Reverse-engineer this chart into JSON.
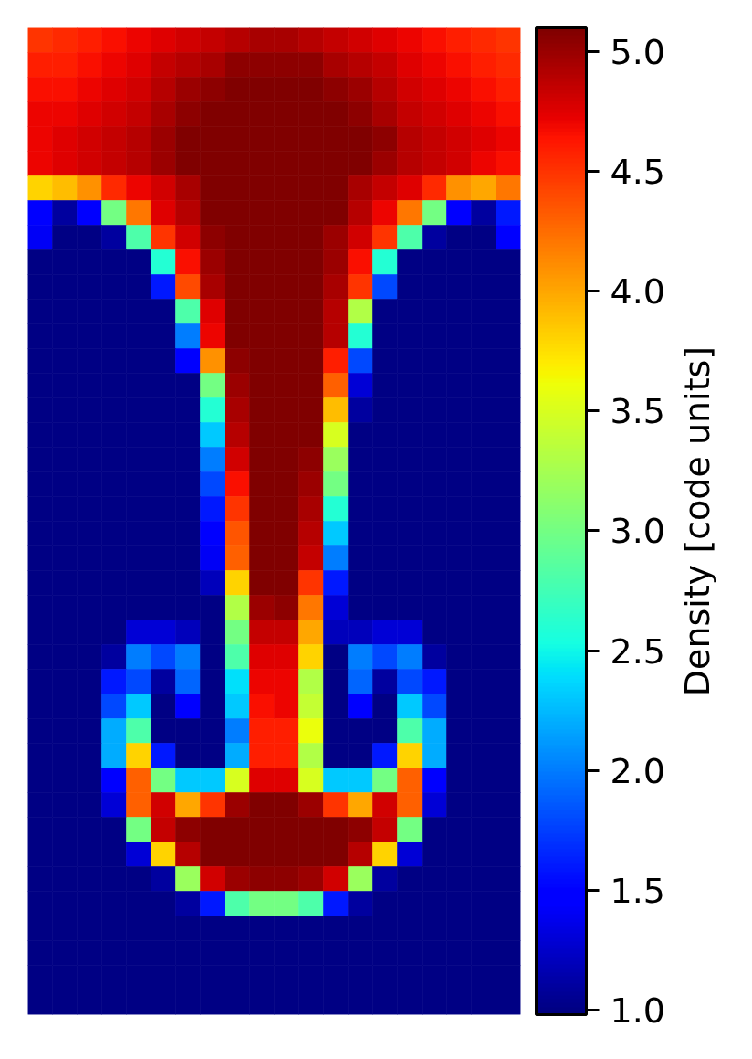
{
  "chart_data": {
    "type": "heatmap",
    "categories": [
      null,
      null,
      null,
      null,
      null,
      null,
      null,
      null,
      null,
      null,
      null,
      null,
      null,
      null,
      null,
      null,
      null,
      null,
      null,
      null
    ],
    "y_categories": [
      null,
      null,
      null,
      null,
      null,
      null,
      null,
      null,
      null,
      null,
      null,
      null,
      null,
      null,
      null,
      null,
      null,
      null,
      null,
      null,
      null,
      null,
      null,
      null,
      null,
      null,
      null,
      null,
      null,
      null,
      null,
      null,
      null,
      null,
      null,
      null,
      null,
      null,
      null,
      null
    ],
    "cells": [
      [
        4.5,
        4.55,
        4.6,
        4.65,
        4.7,
        4.75,
        4.8,
        4.85,
        4.9,
        4.95,
        4.95,
        4.9,
        4.85,
        4.8,
        4.75,
        4.7,
        4.65,
        4.6,
        4.55,
        4.5
      ],
      [
        4.6,
        4.6,
        4.65,
        4.7,
        4.75,
        4.85,
        4.9,
        4.95,
        5.05,
        5.05,
        5.05,
        5.05,
        4.95,
        4.9,
        4.85,
        4.75,
        4.7,
        4.65,
        4.6,
        4.55
      ],
      [
        4.65,
        4.65,
        4.7,
        4.75,
        4.8,
        4.9,
        5.0,
        5.05,
        5.1,
        5.1,
        5.1,
        5.1,
        5.05,
        5.0,
        4.9,
        4.8,
        4.75,
        4.7,
        4.65,
        4.6
      ],
      [
        4.7,
        4.7,
        4.75,
        4.8,
        4.85,
        4.95,
        5.05,
        5.1,
        5.1,
        5.1,
        5.1,
        5.1,
        5.1,
        5.05,
        4.95,
        4.85,
        4.8,
        4.75,
        4.7,
        4.65
      ],
      [
        4.7,
        4.75,
        4.8,
        4.85,
        4.9,
        5.0,
        5.1,
        5.1,
        5.1,
        5.1,
        5.1,
        5.1,
        5.1,
        5.1,
        5.05,
        4.9,
        4.85,
        4.8,
        4.75,
        4.7
      ],
      [
        4.7,
        4.75,
        4.8,
        4.85,
        4.9,
        5.0,
        5.1,
        5.1,
        5.1,
        5.1,
        5.1,
        5.1,
        5.1,
        5.1,
        5.0,
        4.9,
        4.85,
        4.8,
        4.7,
        4.65
      ],
      [
        3.8,
        3.9,
        4.1,
        4.55,
        4.7,
        4.8,
        4.95,
        5.1,
        5.1,
        5.1,
        5.1,
        5.1,
        5.1,
        4.95,
        4.85,
        4.75,
        4.55,
        4.1,
        4.0,
        4.2
      ],
      [
        1.5,
        1.1,
        1.5,
        3.0,
        4.2,
        4.75,
        4.9,
        5.1,
        5.1,
        5.1,
        5.1,
        5.1,
        5.1,
        4.9,
        4.7,
        4.2,
        3.0,
        1.5,
        1.1,
        1.6
      ],
      [
        1.4,
        1,
        1,
        1.1,
        2.8,
        4.5,
        4.8,
        5.05,
        5.1,
        5.1,
        5.1,
        5.1,
        5.0,
        4.8,
        4.5,
        2.8,
        1.1,
        1,
        1,
        1.5
      ],
      [
        1,
        1,
        1,
        1,
        1,
        2.6,
        4.65,
        5.0,
        5.1,
        5.1,
        5.1,
        5.1,
        5.0,
        4.65,
        2.6,
        1,
        1,
        1,
        1,
        1
      ],
      [
        1,
        1,
        1,
        1,
        1,
        1.6,
        4.4,
        4.95,
        5.1,
        5.1,
        5.1,
        5.1,
        4.95,
        4.5,
        1.8,
        1,
        1,
        1,
        1,
        1
      ],
      [
        1,
        1,
        1,
        1,
        1,
        1,
        2.8,
        4.75,
        5.1,
        5.1,
        5.1,
        5.1,
        4.9,
        3.3,
        1,
        1,
        1,
        1,
        1,
        1
      ],
      [
        1,
        1,
        1,
        1,
        1,
        1,
        2.0,
        4.7,
        5.1,
        5.1,
        5.1,
        5.1,
        4.9,
        2.6,
        1,
        1,
        1,
        1,
        1,
        1
      ],
      [
        1,
        1,
        1,
        1,
        1,
        1,
        1.5,
        4.1,
        5.05,
        5.1,
        5.1,
        5.1,
        4.6,
        1.8,
        1,
        1,
        1,
        1,
        1,
        1
      ],
      [
        1,
        1,
        1,
        1,
        1,
        1,
        1,
        3.0,
        5.0,
        5.1,
        5.1,
        5.1,
        4.3,
        1.3,
        1,
        1,
        1,
        1,
        1,
        1
      ],
      [
        1,
        1,
        1,
        1,
        1,
        1,
        1,
        2.6,
        4.95,
        5.1,
        5.1,
        5.1,
        3.9,
        1.1,
        1,
        1,
        1,
        1,
        1,
        1
      ],
      [
        1,
        1,
        1,
        1,
        1,
        1,
        1,
        2.3,
        4.9,
        5.1,
        5.1,
        5.1,
        3.5,
        1,
        1,
        1,
        1,
        1,
        1,
        1
      ],
      [
        1,
        1,
        1,
        1,
        1,
        1,
        1,
        2.0,
        4.8,
        5.1,
        5.1,
        5.05,
        3.2,
        1,
        1,
        1,
        1,
        1,
        1,
        1
      ],
      [
        1,
        1,
        1,
        1,
        1,
        1,
        1,
        1.8,
        4.65,
        5.1,
        5.1,
        5.0,
        3.0,
        1,
        1,
        1,
        1,
        1,
        1,
        1
      ],
      [
        1,
        1,
        1,
        1,
        1,
        1,
        1,
        1.6,
        4.5,
        5.1,
        5.1,
        4.95,
        2.6,
        1,
        1,
        1,
        1,
        1,
        1,
        1
      ],
      [
        1,
        1,
        1,
        1,
        1,
        1,
        1,
        1.5,
        4.35,
        5.1,
        5.1,
        4.9,
        2.3,
        1,
        1,
        1,
        1,
        1,
        1,
        1
      ],
      [
        1,
        1,
        1,
        1,
        1,
        1,
        1,
        1.4,
        4.3,
        5.1,
        5.1,
        4.85,
        2.0,
        1,
        1,
        1,
        1,
        1,
        1,
        1
      ],
      [
        1,
        1,
        1,
        1,
        1,
        1,
        1,
        1.2,
        3.8,
        5.1,
        5.1,
        4.5,
        1.6,
        1,
        1,
        1,
        1,
        1,
        1,
        1
      ],
      [
        1,
        1,
        1,
        1,
        1,
        1,
        1,
        1,
        3.3,
        5.0,
        5.05,
        4.2,
        1.3,
        1,
        1,
        1,
        1,
        1,
        1,
        1
      ],
      [
        1,
        1,
        1,
        1,
        1.3,
        1.3,
        1.2,
        1,
        3.0,
        4.85,
        4.85,
        4.0,
        1.2,
        1.2,
        1.3,
        1.3,
        1,
        1,
        1,
        1
      ],
      [
        1,
        1,
        1,
        1.1,
        2.0,
        1.8,
        2.0,
        1,
        2.8,
        4.75,
        4.75,
        3.8,
        1,
        2.0,
        1.8,
        2.0,
        1.1,
        1,
        1,
        1
      ],
      [
        1,
        1,
        1,
        1.6,
        1.8,
        1.1,
        1.9,
        1,
        2.4,
        4.7,
        4.7,
        3.3,
        1,
        1.9,
        1.1,
        1.8,
        1.6,
        1,
        1,
        1
      ],
      [
        1,
        1,
        1,
        1.8,
        2.3,
        1,
        1.5,
        1,
        2.3,
        4.65,
        4.7,
        3.4,
        1,
        1.5,
        1,
        2.3,
        1.8,
        1,
        1,
        1
      ],
      [
        1,
        1,
        1,
        2.2,
        2.8,
        1,
        1,
        1,
        2.0,
        4.6,
        4.6,
        3.6,
        1,
        1,
        1,
        2.8,
        2.2,
        1,
        1,
        1
      ],
      [
        1,
        1,
        1,
        2.2,
        3.8,
        1.6,
        1,
        1,
        2.2,
        4.6,
        4.6,
        3.3,
        1,
        1,
        1.6,
        3.8,
        2.2,
        1,
        1,
        1
      ],
      [
        1,
        1,
        1,
        1.5,
        4.3,
        3.0,
        2.3,
        2.3,
        3.5,
        4.75,
        4.75,
        3.5,
        2.3,
        2.3,
        3.0,
        4.3,
        1.5,
        1,
        1,
        1
      ],
      [
        1,
        1,
        1,
        1.3,
        4.3,
        4.8,
        4.0,
        4.5,
        5.0,
        5.1,
        5.1,
        5.0,
        4.5,
        4.0,
        4.8,
        4.3,
        1.3,
        1,
        1,
        1
      ],
      [
        1,
        1,
        1,
        1,
        3.0,
        4.85,
        5.05,
        5.1,
        5.1,
        5.1,
        5.1,
        5.1,
        5.1,
        5.05,
        4.85,
        3.0,
        1,
        1,
        1,
        1
      ],
      [
        1,
        1,
        1,
        1,
        1.3,
        3.8,
        4.9,
        5.1,
        5.1,
        5.1,
        5.1,
        5.1,
        5.1,
        4.9,
        3.8,
        1.3,
        1,
        1,
        1,
        1
      ],
      [
        1,
        1,
        1,
        1,
        1,
        1.1,
        3.2,
        4.8,
        5.0,
        5.05,
        5.05,
        5.0,
        4.8,
        3.2,
        1.1,
        1,
        1,
        1,
        1,
        1
      ],
      [
        1,
        1,
        1,
        1,
        1,
        1,
        1.1,
        1.6,
        2.8,
        3.0,
        3.0,
        2.8,
        1.6,
        1.1,
        1,
        1,
        1,
        1,
        1,
        1
      ],
      [
        1,
        1,
        1,
        1,
        1,
        1,
        1,
        1,
        1,
        1,
        1,
        1,
        1,
        1,
        1,
        1,
        1,
        1,
        1,
        1
      ],
      [
        1,
        1,
        1,
        1,
        1,
        1,
        1,
        1,
        1,
        1,
        1,
        1,
        1,
        1,
        1,
        1,
        1,
        1,
        1,
        1
      ],
      [
        1,
        1,
        1,
        1,
        1,
        1,
        1,
        1,
        1,
        1,
        1,
        1,
        1,
        1,
        1,
        1,
        1,
        1,
        1,
        1
      ],
      [
        1,
        1,
        1,
        1,
        1,
        1,
        1,
        1,
        1,
        1,
        1,
        1,
        1,
        1,
        1,
        1,
        1,
        1,
        1,
        1
      ]
    ],
    "clim": [
      0.98,
      5.1
    ],
    "cticks": [
      {
        "value": 1,
        "label": "1.0"
      },
      1.5,
      {
        "value": 2,
        "label": "2.0"
      },
      2.5,
      {
        "value": 3,
        "label": "3.0"
      },
      3.5,
      {
        "value": 4,
        "label": "4.0"
      },
      4.5,
      {
        "value": 5,
        "label": "5.0"
      }
    ],
    "clabel": "Density [code units]",
    "tick_labels": false
  }
}
